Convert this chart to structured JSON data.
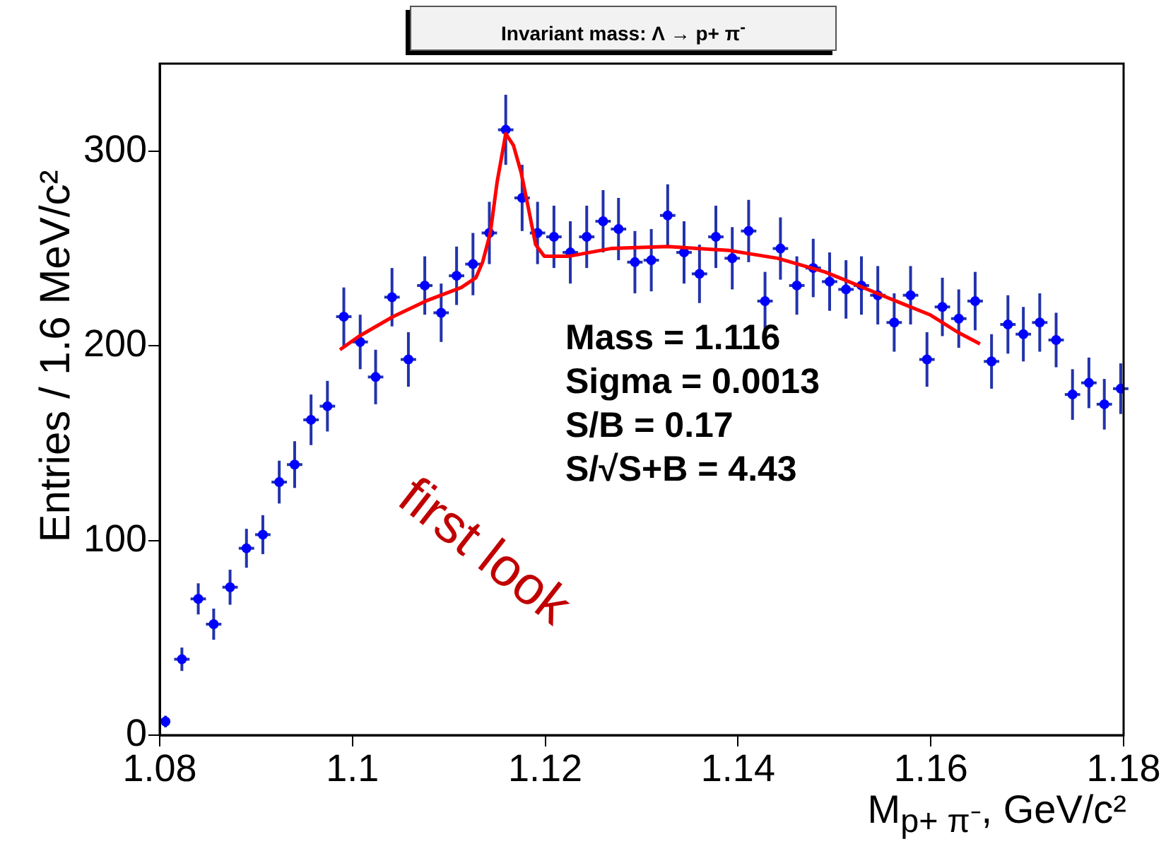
{
  "chart_data": {
    "type": "scatter",
    "title": "Invariant mass: Λ → p+ π$^{-}$",
    "xlabel": "M$_{p+ π⁻}$, GeV/c²",
    "ylabel": "Entries / 1.6 MeV/c²",
    "xlim": [
      1.08,
      1.18
    ],
    "xticks": [
      1.08,
      1.1,
      1.12,
      1.14,
      1.16,
      1.18
    ],
    "ylim": [
      0,
      345
    ],
    "yticks": [
      0,
      100,
      200,
      300
    ],
    "grid": false,
    "legend": false,
    "marker": "circle",
    "annotations": [
      "Mass = 1.116",
      "Sigma = 0.0013",
      "S/B = 0.17",
      "S/√S+B = 4.43",
      "first look"
    ],
    "series": [
      {
        "color": "#0000ff",
        "x": [
          1.0806,
          1.0823,
          1.084,
          1.0856,
          1.0873,
          1.089,
          1.0907,
          1.0924,
          1.094,
          1.0957,
          1.0974,
          1.0991,
          1.1008,
          1.1024,
          1.1041,
          1.1058,
          1.1075,
          1.1092,
          1.1108,
          1.1125,
          1.1142,
          1.1159,
          1.1176,
          1.1192,
          1.1209,
          1.1226,
          1.1243,
          1.126,
          1.1276,
          1.1293,
          1.131,
          1.1327,
          1.1344,
          1.136,
          1.1377,
          1.1394,
          1.1411,
          1.1428,
          1.1444,
          1.1461,
          1.1478,
          1.1495,
          1.1512,
          1.1528,
          1.1545,
          1.1562,
          1.1579,
          1.1596,
          1.1612,
          1.1629,
          1.1646,
          1.1663,
          1.168,
          1.1696,
          1.1713,
          1.173,
          1.1747,
          1.1764,
          1.178,
          1.1797
        ],
        "values": [
          7,
          39,
          70,
          57,
          76,
          96,
          103,
          130,
          139,
          162,
          169,
          215,
          202,
          184,
          225,
          193,
          231,
          217,
          236,
          242,
          258,
          311,
          276,
          258,
          256,
          248,
          256,
          264,
          260,
          243,
          244,
          267,
          248,
          237,
          256,
          245,
          259,
          223,
          250,
          231,
          240,
          233,
          229,
          231,
          226,
          212,
          226,
          193,
          220,
          214,
          223,
          192,
          211,
          206,
          212,
          203,
          175,
          181,
          170,
          178
        ],
        "errors": [
          3,
          6,
          8,
          8,
          9,
          10,
          10,
          11,
          12,
          13,
          13,
          15,
          14,
          14,
          15,
          14,
          15,
          15,
          15,
          16,
          16,
          18,
          17,
          16,
          16,
          16,
          16,
          16,
          16,
          16,
          16,
          16,
          16,
          15,
          16,
          16,
          16,
          15,
          16,
          15,
          15,
          15,
          15,
          15,
          15,
          15,
          15,
          14,
          15,
          15,
          15,
          14,
          15,
          14,
          15,
          14,
          13,
          13,
          13,
          13
        ],
        "xerrors": [
          null,
          0.0008,
          0.0008,
          0.0008,
          0.0008,
          0.0008,
          0.0008,
          0.0008,
          0.0008,
          0.0008,
          0.0008,
          0.0008,
          0.0008,
          0.0008,
          0.0008,
          0.0008,
          0.0008,
          0.0008,
          0.0008,
          0.0008,
          0.0008,
          0.0008,
          0.0008,
          0.0008,
          0.0008,
          0.0008,
          0.0008,
          0.0008,
          0.0008,
          0.0008,
          0.0008,
          0.0008,
          0.0008,
          0.0008,
          0.0008,
          0.0008,
          0.0008,
          0.0008,
          0.0008,
          0.0008,
          0.0008,
          0.0008,
          0.0008,
          0.0008,
          0.0008,
          0.0008,
          0.0008,
          0.0008,
          0.0008,
          0.0008,
          0.0008,
          0.0008,
          0.0008,
          0.0008,
          0.0008,
          0.0008,
          0.0008,
          0.0008,
          0.0008,
          0.0008
        ]
      },
      {
        "type": "line",
        "color": "#ff0000",
        "marker": "none",
        "x": [
          1.0987,
          1.1007,
          1.1042,
          1.1076,
          1.1113,
          1.1128,
          1.1135,
          1.1143,
          1.115,
          1.1159,
          1.1167,
          1.1175,
          1.1182,
          1.119,
          1.1199,
          1.1224,
          1.1268,
          1.1327,
          1.1391,
          1.1441,
          1.149,
          1.151,
          1.1559,
          1.1599,
          1.1628,
          1.1651
        ],
        "values": [
          198,
          205,
          215,
          223,
          230,
          235,
          243,
          258,
          284,
          309,
          303,
          289,
          272,
          252,
          246,
          246,
          250,
          251,
          249,
          245,
          238,
          234,
          224,
          216,
          207,
          201
        ]
      }
    ]
  }
}
